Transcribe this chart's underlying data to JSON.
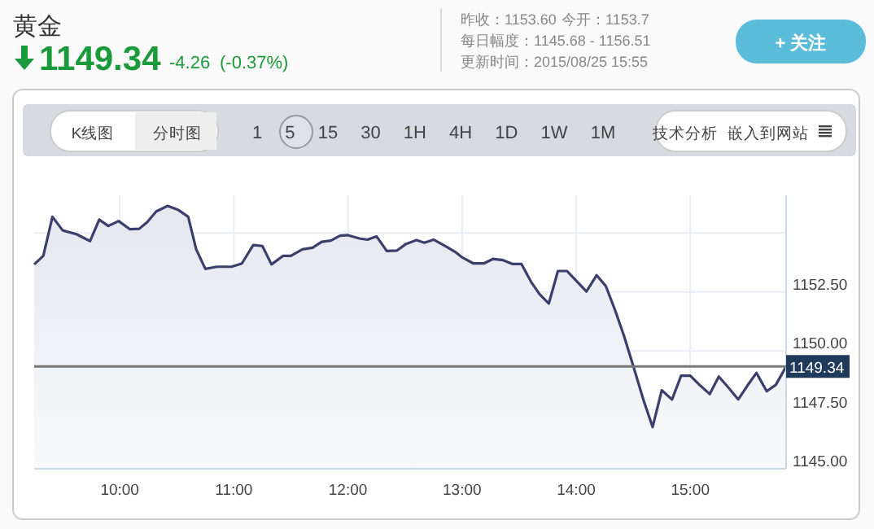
{
  "chart_data": {
    "type": "area",
    "title": "黄金",
    "annotations": [
      "1149.34",
      "-4.26",
      "(-0.37%)",
      "昨收：1153.60",
      "今开：1153.7",
      "每日幅度：1145.68 - 1156.51",
      "更新时间：2015/08/25 15:55",
      "+ 关注",
      "K线图",
      "分时图",
      "1 5 15 30 1H 4H 1D 1W 1M",
      "技术分析",
      "嵌入到网站"
    ],
    "xlim": [
      9.25,
      15.84
    ],
    "xticks": [
      {
        "value": 10,
        "label": "10:00"
      },
      {
        "value": 11,
        "label": "11:00"
      },
      {
        "value": 12,
        "label": "12:00"
      },
      {
        "value": 13,
        "label": "13:00"
      },
      {
        "value": 14,
        "label": "14:00"
      },
      {
        "value": 15,
        "label": "15:00"
      }
    ],
    "ylim": [
      1145,
      1156.6
    ],
    "yticks": [
      {
        "value": 1145,
        "label": "1145.00"
      },
      {
        "value": 1147.5,
        "label": "1147.50"
      },
      {
        "value": 1150,
        "label": "1150.00"
      },
      {
        "value": 1152.5,
        "label": "1152.50"
      },
      {
        "value": 1155,
        "label": null
      }
    ],
    "grid": true,
    "ref_lines": [
      {
        "axis": "y",
        "value": 1149.34,
        "label": "1149.34",
        "color": "#777777"
      }
    ],
    "series": [
      {
        "color": "#3b3f6b",
        "x": [
          9.25,
          9.33,
          9.41,
          9.5,
          9.62,
          9.74,
          9.82,
          9.9,
          9.99,
          10.09,
          10.17,
          10.24,
          10.32,
          10.42,
          10.51,
          10.6,
          10.67,
          10.75,
          10.85,
          10.98,
          11.07,
          11.17,
          11.25,
          11.33,
          11.43,
          11.5,
          11.6,
          11.69,
          11.77,
          11.85,
          11.93,
          12.0,
          12.1,
          12.17,
          12.25,
          12.34,
          12.43,
          12.51,
          12.6,
          12.67,
          12.75,
          12.86,
          12.94,
          13.0,
          13.1,
          13.19,
          13.27,
          13.36,
          13.44,
          13.52,
          13.61,
          13.68,
          13.76,
          13.84,
          13.92,
          14.0,
          14.09,
          14.18,
          14.26,
          14.34,
          14.42,
          14.5,
          14.59,
          14.67,
          14.75,
          14.84,
          14.92,
          15.0,
          15.09,
          15.17,
          15.25,
          15.33,
          15.42,
          15.5,
          15.58,
          15.67,
          15.75,
          15.84
        ],
        "values": [
          1153.67,
          1154.03,
          1155.69,
          1155.11,
          1154.95,
          1154.66,
          1155.57,
          1155.3,
          1155.51,
          1155.16,
          1155.18,
          1155.46,
          1155.92,
          1156.15,
          1155.99,
          1155.69,
          1154.31,
          1153.48,
          1153.57,
          1153.57,
          1153.71,
          1154.49,
          1154.45,
          1153.67,
          1154.03,
          1154.03,
          1154.31,
          1154.38,
          1154.63,
          1154.68,
          1154.89,
          1154.91,
          1154.77,
          1154.72,
          1154.86,
          1154.24,
          1154.26,
          1154.54,
          1154.7,
          1154.59,
          1154.72,
          1154.43,
          1154.2,
          1153.97,
          1153.71,
          1153.71,
          1153.9,
          1153.85,
          1153.69,
          1153.69,
          1152.89,
          1152.4,
          1152.01,
          1153.39,
          1153.39,
          1152.98,
          1152.52,
          1153.21,
          1152.75,
          1151.74,
          1150.63,
          1149.37,
          1147.92,
          1146.77,
          1148.33,
          1147.94,
          1148.95,
          1148.95,
          1148.52,
          1148.17,
          1148.91,
          1148.47,
          1147.94,
          1148.52,
          1149.07,
          1148.29,
          1148.56,
          1149.34
        ]
      }
    ]
  }
}
